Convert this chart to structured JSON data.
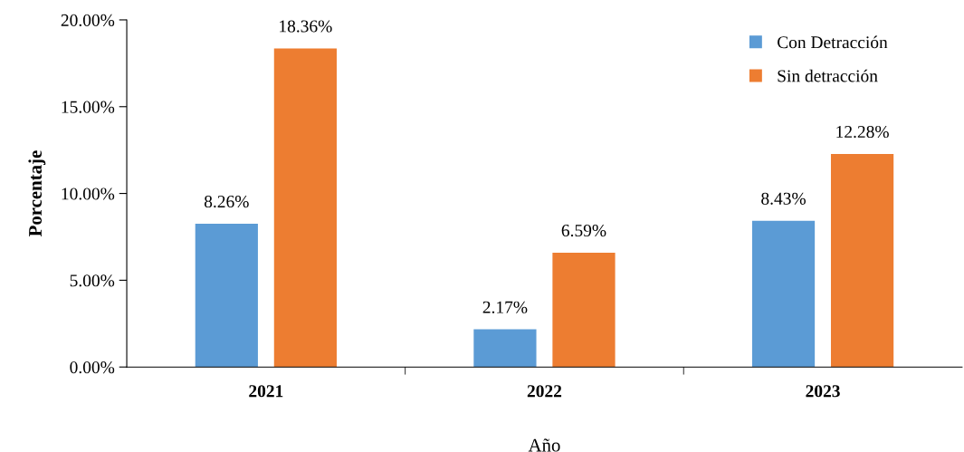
{
  "chart_data": {
    "type": "bar",
    "xlabel": "Año",
    "ylabel": "Porcentaje",
    "categories": [
      "2021",
      "2022",
      "2023"
    ],
    "series": [
      {
        "name": "Con Detracción",
        "color": "#5b9bd5",
        "values": [
          8.26,
          2.17,
          8.43
        ],
        "value_labels": [
          "8.26%",
          "2.17%",
          "8.43%"
        ]
      },
      {
        "name": "Sin detracción",
        "color": "#ed7d31",
        "values": [
          18.36,
          6.59,
          12.28
        ],
        "value_labels": [
          "18.36%",
          "6.59%",
          "12.28%"
        ]
      }
    ],
    "ylim": [
      0,
      20
    ],
    "yticks": [
      {
        "value": 0,
        "label": "0.00%"
      },
      {
        "value": 5,
        "label": "5.00%"
      },
      {
        "value": 10,
        "label": "10.00%"
      },
      {
        "value": 15,
        "label": "15.00%"
      },
      {
        "value": 20,
        "label": "20.00%"
      }
    ],
    "grid": false,
    "legend": "top right"
  }
}
